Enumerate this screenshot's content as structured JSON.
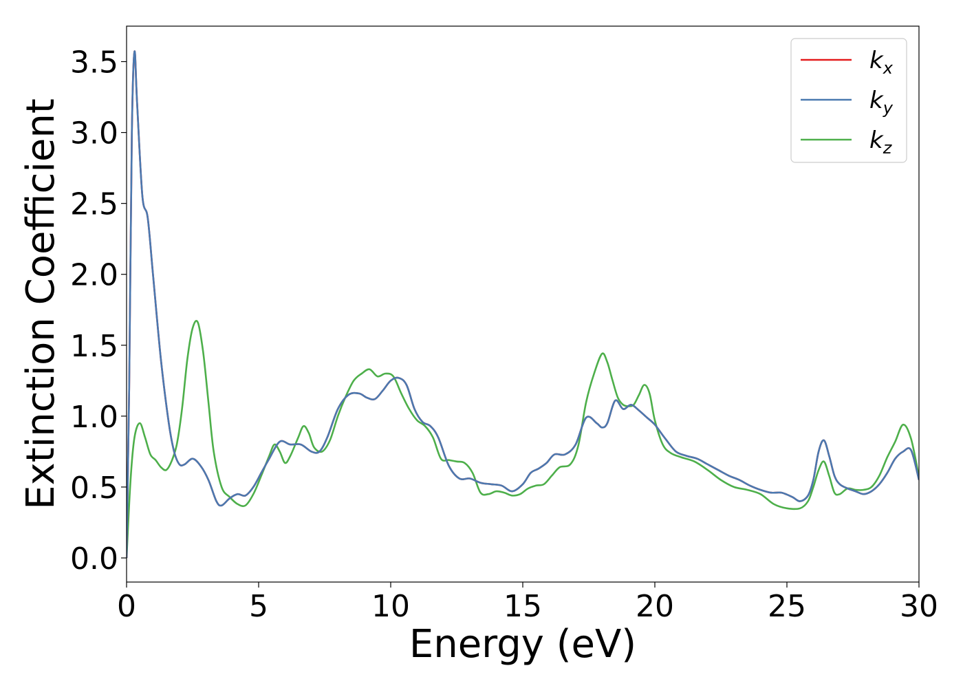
{
  "chart_data": {
    "type": "line",
    "title": "",
    "xlabel": "Energy (eV)",
    "ylabel": "Extinction Coefficient",
    "xlim": [
      0,
      30
    ],
    "ylim": [
      -0.17,
      3.75
    ],
    "xticks": [
      0,
      5,
      10,
      15,
      20,
      25,
      30
    ],
    "xtick_labels": [
      "0",
      "5",
      "10",
      "15",
      "20",
      "25",
      "30"
    ],
    "yticks": [
      0.0,
      0.5,
      1.0,
      1.5,
      2.0,
      2.5,
      3.0,
      3.5
    ],
    "ytick_labels": [
      "0.0",
      "0.5",
      "1.0",
      "1.5",
      "2.0",
      "2.5",
      "3.0",
      "3.5"
    ],
    "grid": false,
    "legend_position": "top-right",
    "series": [
      {
        "name": "k",
        "subscript": "x",
        "color": "#e41a1c",
        "x": [
          0,
          0.1,
          0.2,
          0.3,
          0.4,
          0.6,
          0.8,
          1.0,
          1.3,
          1.6,
          1.8,
          2.0,
          2.2,
          2.5,
          2.8,
          3.1,
          3.4,
          3.6,
          3.9,
          4.2,
          4.5,
          4.8,
          5.1,
          5.4,
          5.8,
          6.2,
          6.6,
          7.0,
          7.3,
          7.6,
          8.0,
          8.4,
          8.8,
          9.1,
          9.4,
          9.7,
          10.0,
          10.3,
          10.6,
          10.9,
          11.2,
          11.5,
          11.8,
          12.2,
          12.6,
          13.0,
          13.4,
          13.8,
          14.2,
          14.6,
          15.0,
          15.3,
          15.6,
          15.9,
          16.2,
          16.6,
          17.0,
          17.4,
          17.8,
          18.0,
          18.2,
          18.5,
          18.8,
          19.1,
          19.4,
          19.7,
          20.0,
          20.4,
          20.8,
          21.2,
          21.6,
          22.0,
          22.4,
          22.8,
          23.2,
          23.6,
          24.0,
          24.4,
          24.8,
          25.2,
          25.5,
          25.8,
          26.0,
          26.2,
          26.4,
          26.6,
          26.8,
          27.0,
          27.3,
          27.6,
          27.9,
          28.2,
          28.5,
          28.8,
          29.1,
          29.4,
          29.7,
          30.0
        ],
        "y": [
          0.0,
          1.2,
          3.0,
          3.57,
          3.2,
          2.55,
          2.4,
          2.0,
          1.4,
          0.95,
          0.75,
          0.66,
          0.66,
          0.7,
          0.65,
          0.55,
          0.4,
          0.37,
          0.42,
          0.45,
          0.44,
          0.5,
          0.6,
          0.7,
          0.82,
          0.8,
          0.8,
          0.75,
          0.75,
          0.85,
          1.05,
          1.15,
          1.16,
          1.13,
          1.12,
          1.18,
          1.25,
          1.27,
          1.22,
          1.05,
          0.96,
          0.93,
          0.85,
          0.65,
          0.56,
          0.56,
          0.53,
          0.52,
          0.51,
          0.47,
          0.52,
          0.6,
          0.63,
          0.67,
          0.73,
          0.73,
          0.8,
          0.99,
          0.95,
          0.92,
          0.95,
          1.11,
          1.05,
          1.08,
          1.04,
          0.99,
          0.94,
          0.84,
          0.75,
          0.72,
          0.7,
          0.66,
          0.62,
          0.58,
          0.55,
          0.51,
          0.48,
          0.46,
          0.46,
          0.43,
          0.4,
          0.44,
          0.55,
          0.75,
          0.83,
          0.72,
          0.58,
          0.52,
          0.49,
          0.47,
          0.45,
          0.47,
          0.52,
          0.6,
          0.7,
          0.75,
          0.76,
          0.55
        ]
      },
      {
        "name": "k",
        "subscript": "y",
        "color": "#4a79b0",
        "x": [
          0,
          0.1,
          0.2,
          0.3,
          0.4,
          0.6,
          0.8,
          1.0,
          1.3,
          1.6,
          1.8,
          2.0,
          2.2,
          2.5,
          2.8,
          3.1,
          3.4,
          3.6,
          3.9,
          4.2,
          4.5,
          4.8,
          5.1,
          5.4,
          5.8,
          6.2,
          6.6,
          7.0,
          7.3,
          7.6,
          8.0,
          8.4,
          8.8,
          9.1,
          9.4,
          9.7,
          10.0,
          10.3,
          10.6,
          10.9,
          11.2,
          11.5,
          11.8,
          12.2,
          12.6,
          13.0,
          13.4,
          13.8,
          14.2,
          14.6,
          15.0,
          15.3,
          15.6,
          15.9,
          16.2,
          16.6,
          17.0,
          17.4,
          17.8,
          18.0,
          18.2,
          18.5,
          18.8,
          19.1,
          19.4,
          19.7,
          20.0,
          20.4,
          20.8,
          21.2,
          21.6,
          22.0,
          22.4,
          22.8,
          23.2,
          23.6,
          24.0,
          24.4,
          24.8,
          25.2,
          25.5,
          25.8,
          26.0,
          26.2,
          26.4,
          26.6,
          26.8,
          27.0,
          27.3,
          27.6,
          27.9,
          28.2,
          28.5,
          28.8,
          29.1,
          29.4,
          29.7,
          30.0
        ],
        "y": [
          0.0,
          1.2,
          3.0,
          3.57,
          3.2,
          2.55,
          2.4,
          2.0,
          1.4,
          0.95,
          0.75,
          0.66,
          0.66,
          0.7,
          0.65,
          0.55,
          0.4,
          0.37,
          0.42,
          0.45,
          0.44,
          0.5,
          0.6,
          0.7,
          0.82,
          0.8,
          0.8,
          0.75,
          0.75,
          0.85,
          1.05,
          1.15,
          1.16,
          1.13,
          1.12,
          1.18,
          1.25,
          1.27,
          1.22,
          1.05,
          0.96,
          0.93,
          0.85,
          0.65,
          0.56,
          0.56,
          0.53,
          0.52,
          0.51,
          0.47,
          0.52,
          0.6,
          0.63,
          0.67,
          0.73,
          0.73,
          0.8,
          0.99,
          0.95,
          0.92,
          0.95,
          1.11,
          1.05,
          1.08,
          1.04,
          0.99,
          0.94,
          0.84,
          0.75,
          0.72,
          0.7,
          0.66,
          0.62,
          0.58,
          0.55,
          0.51,
          0.48,
          0.46,
          0.46,
          0.43,
          0.4,
          0.44,
          0.55,
          0.75,
          0.83,
          0.72,
          0.58,
          0.52,
          0.49,
          0.47,
          0.45,
          0.47,
          0.52,
          0.6,
          0.7,
          0.75,
          0.76,
          0.55
        ]
      },
      {
        "name": "k",
        "subscript": "z",
        "color": "#4daf4a",
        "x": [
          0,
          0.15,
          0.3,
          0.5,
          0.7,
          0.9,
          1.1,
          1.3,
          1.5,
          1.7,
          1.9,
          2.1,
          2.3,
          2.5,
          2.7,
          2.9,
          3.1,
          3.3,
          3.6,
          3.9,
          4.2,
          4.5,
          4.8,
          5.1,
          5.4,
          5.6,
          5.8,
          6.0,
          6.2,
          6.5,
          6.7,
          6.9,
          7.1,
          7.4,
          7.7,
          8.0,
          8.3,
          8.6,
          8.9,
          9.2,
          9.5,
          9.8,
          10.1,
          10.4,
          10.7,
          11.0,
          11.3,
          11.6,
          11.9,
          12.2,
          12.5,
          12.8,
          13.1,
          13.4,
          13.7,
          14.0,
          14.3,
          14.6,
          14.9,
          15.2,
          15.5,
          15.8,
          16.1,
          16.4,
          16.8,
          17.1,
          17.4,
          17.7,
          18.0,
          18.2,
          18.4,
          18.6,
          18.8,
          19.0,
          19.2,
          19.4,
          19.6,
          19.8,
          20.0,
          20.3,
          20.6,
          21.0,
          21.5,
          22.0,
          22.5,
          23.0,
          23.5,
          24.0,
          24.5,
          25.0,
          25.5,
          25.8,
          26.0,
          26.2,
          26.4,
          26.6,
          26.8,
          27.0,
          27.3,
          27.6,
          27.9,
          28.2,
          28.5,
          28.8,
          29.1,
          29.4,
          29.7,
          30.0
        ],
        "y": [
          0.0,
          0.55,
          0.85,
          0.95,
          0.85,
          0.73,
          0.69,
          0.64,
          0.62,
          0.68,
          0.8,
          1.05,
          1.4,
          1.62,
          1.66,
          1.45,
          1.1,
          0.75,
          0.5,
          0.43,
          0.38,
          0.37,
          0.45,
          0.58,
          0.72,
          0.8,
          0.75,
          0.67,
          0.72,
          0.85,
          0.93,
          0.88,
          0.78,
          0.75,
          0.83,
          1.0,
          1.14,
          1.25,
          1.3,
          1.33,
          1.28,
          1.3,
          1.28,
          1.16,
          1.05,
          0.97,
          0.93,
          0.85,
          0.7,
          0.69,
          0.68,
          0.67,
          0.6,
          0.46,
          0.45,
          0.47,
          0.46,
          0.44,
          0.45,
          0.49,
          0.51,
          0.52,
          0.58,
          0.64,
          0.66,
          0.79,
          1.1,
          1.3,
          1.44,
          1.38,
          1.25,
          1.13,
          1.08,
          1.07,
          1.08,
          1.15,
          1.22,
          1.16,
          0.97,
          0.8,
          0.74,
          0.71,
          0.68,
          0.62,
          0.55,
          0.5,
          0.48,
          0.45,
          0.38,
          0.35,
          0.35,
          0.4,
          0.5,
          0.62,
          0.68,
          0.58,
          0.46,
          0.45,
          0.49,
          0.48,
          0.48,
          0.5,
          0.58,
          0.71,
          0.82,
          0.94,
          0.84,
          0.57
        ]
      }
    ]
  }
}
